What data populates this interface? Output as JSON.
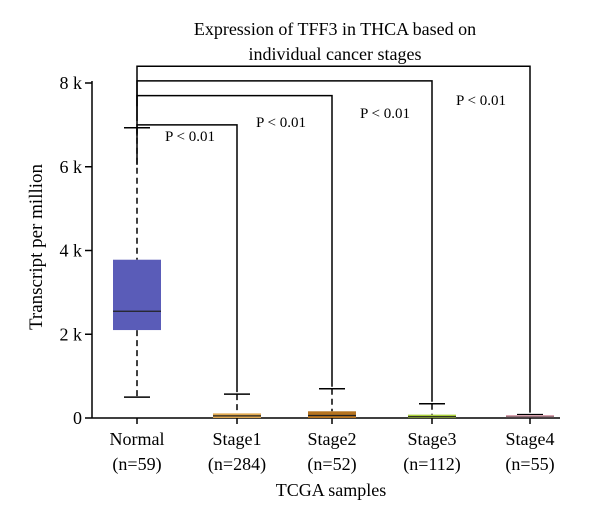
{
  "chart_data": {
    "type": "box",
    "title_lines": [
      "Expression of TFF3 in THCA based on",
      "individual cancer stages"
    ],
    "xlabel": "TCGA samples",
    "ylabel": "Transcript per million",
    "ylim": [
      0,
      8000
    ],
    "yticks": [
      {
        "value": 0,
        "label": "0"
      },
      {
        "value": 2000,
        "label": "2 k"
      },
      {
        "value": 4000,
        "label": "4 k"
      },
      {
        "value": 6000,
        "label": "6 k"
      },
      {
        "value": 8000,
        "label": "8 k"
      }
    ],
    "groups": [
      {
        "name": "Normal",
        "n_label": "(n=59)",
        "color": "#5a5cb8",
        "min": 500,
        "q1": 2100,
        "median": 2550,
        "q3": 3780,
        "max": 6930
      },
      {
        "name": "Stage1",
        "n_label": "(n=284)",
        "color": "#e0a84e",
        "min": 0,
        "q1": 0,
        "median": 50,
        "q3": 110,
        "max": 570
      },
      {
        "name": "Stage2",
        "n_label": "(n=52)",
        "color": "#b5731f",
        "min": 0,
        "q1": 0,
        "median": 60,
        "q3": 160,
        "max": 700
      },
      {
        "name": "Stage3",
        "n_label": "(n=112)",
        "color": "#a9cf3a",
        "min": 0,
        "q1": 0,
        "median": 30,
        "q3": 80,
        "max": 340
      },
      {
        "name": "Stage4",
        "n_label": "(n=55)",
        "color": "#d9a3b0",
        "min": 0,
        "q1": 0,
        "median": 20,
        "q3": 40,
        "max": 80
      }
    ],
    "comparisons": [
      {
        "from": "Normal",
        "to": "Stage1",
        "label": "P < 0.01",
        "level": 7000
      },
      {
        "from": "Normal",
        "to": "Stage2",
        "label": "P < 0.01",
        "level": 7700
      },
      {
        "from": "Normal",
        "to": "Stage3",
        "label": "P < 0.01",
        "level": 8050
      },
      {
        "from": "Normal",
        "to": "Stage4",
        "label": "P < 0.01",
        "level": 8400
      }
    ]
  }
}
